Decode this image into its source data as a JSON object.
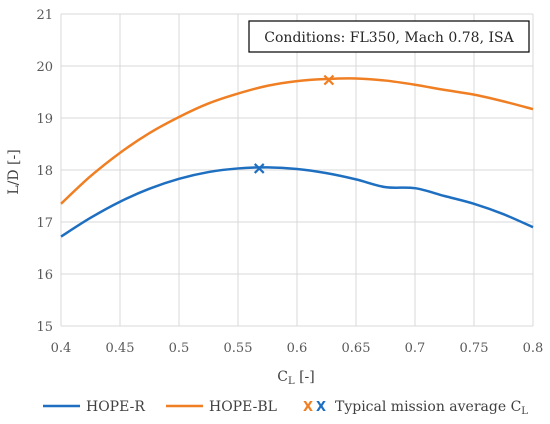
{
  "chart_data": {
    "type": "line",
    "xlabel_main": "C",
    "xlabel_sub": "L",
    "xlabel_unit": " [-]",
    "ylabel": "L/D [-]",
    "xlim": [
      0.4,
      0.8
    ],
    "ylim": [
      15,
      21
    ],
    "xticks": [
      0.4,
      0.45,
      0.5,
      0.55,
      0.6,
      0.65,
      0.7,
      0.75,
      0.8
    ],
    "xtick_labels": [
      "0.4",
      "0.45",
      "0.5",
      "0.55",
      "0.6",
      "0.65",
      "0.7",
      "0.75",
      "0.8"
    ],
    "yticks": [
      15,
      16,
      17,
      18,
      19,
      20,
      21
    ],
    "ytick_labels": [
      "15",
      "16",
      "17",
      "18",
      "19",
      "20",
      "21"
    ],
    "grid": true,
    "legend_position": "bottom",
    "annotation": "Conditions: FL350, Mach 0.78, ISA",
    "series": [
      {
        "name": "HOPE-R",
        "color": "#1f6fc1",
        "x": [
          0.4,
          0.425,
          0.45,
          0.475,
          0.5,
          0.525,
          0.55,
          0.575,
          0.6,
          0.625,
          0.65,
          0.675,
          0.7,
          0.725,
          0.75,
          0.775,
          0.8
        ],
        "y": [
          16.72,
          17.08,
          17.39,
          17.64,
          17.83,
          17.96,
          18.03,
          18.05,
          18.02,
          17.94,
          17.82,
          17.67,
          17.65,
          17.5,
          17.35,
          17.15,
          16.9
        ]
      },
      {
        "name": "HOPE-BL",
        "color": "#f07f24",
        "x": [
          0.4,
          0.425,
          0.45,
          0.475,
          0.5,
          0.525,
          0.55,
          0.575,
          0.6,
          0.625,
          0.65,
          0.675,
          0.7,
          0.725,
          0.75,
          0.775,
          0.8
        ],
        "y": [
          17.35,
          17.88,
          18.33,
          18.71,
          19.02,
          19.28,
          19.47,
          19.62,
          19.71,
          19.75,
          19.76,
          19.72,
          19.64,
          19.54,
          19.45,
          19.32,
          19.17
        ]
      }
    ],
    "markers": [
      {
        "series": "HOPE-R",
        "x": 0.568,
        "y": 18.03,
        "color": "#1f6fc1"
      },
      {
        "series": "HOPE-BL",
        "x": 0.627,
        "y": 19.73,
        "color": "#f07f24"
      }
    ],
    "legend": {
      "items": [
        "HOPE-R",
        "HOPE-BL"
      ],
      "marker_label_main": "Typical mission average C",
      "marker_label_sub": "L",
      "marker_colors": [
        "#f07f24",
        "#1f6fc1"
      ]
    }
  }
}
